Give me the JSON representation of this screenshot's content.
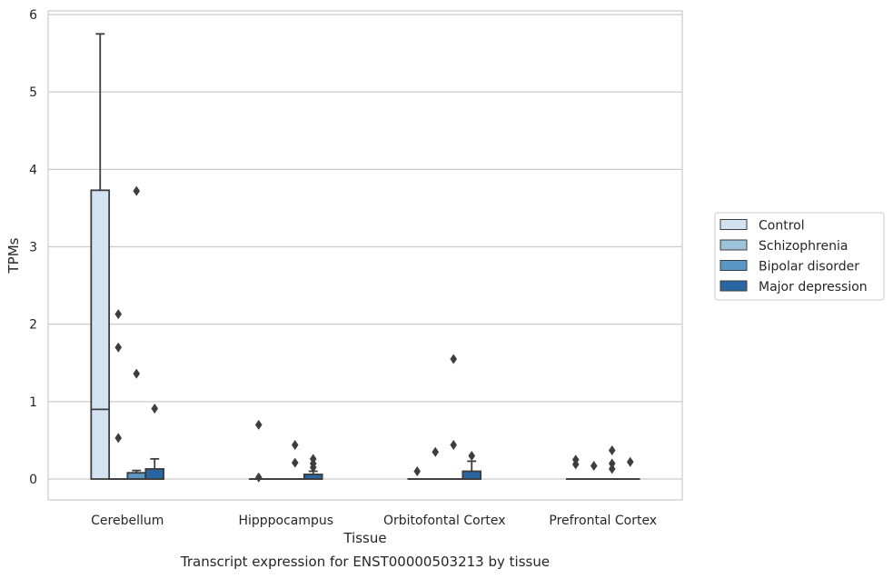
{
  "chart_data": {
    "type": "box",
    "xlabel": "Tissue",
    "ylabel": "TPMs",
    "caption": "Transcript expression for ENST00000503213 by tissue",
    "ylim": [
      -0.27,
      6.05
    ],
    "yticks": [
      0,
      1,
      2,
      3,
      4,
      5,
      6
    ],
    "grid": "horizontal",
    "legend_position": "right",
    "categories": [
      "Cerebellum",
      "Hipppocampus",
      "Orbitofontal Cortex",
      "Prefrontal Cortex"
    ],
    "series": [
      {
        "name": "Control",
        "color": "#d3e3f1",
        "boxes": [
          {
            "q1": 0,
            "median": 0.9,
            "q3": 3.73,
            "whisker_low": 0,
            "whisker_high": 5.75,
            "outliers": []
          },
          {
            "q1": 0,
            "median": 0,
            "q3": 0,
            "whisker_low": 0,
            "whisker_high": 0,
            "outliers": [
              0.7,
              0.02
            ]
          },
          {
            "q1": 0,
            "median": 0,
            "q3": 0,
            "whisker_low": 0,
            "whisker_high": 0,
            "outliers": [
              0.1
            ]
          },
          {
            "q1": 0,
            "median": 0,
            "q3": 0,
            "whisker_low": 0,
            "whisker_high": 0,
            "outliers": [
              0.25,
              0.19
            ]
          }
        ]
      },
      {
        "name": "Schizophrenia",
        "color": "#9cc3da",
        "boxes": [
          {
            "q1": 0,
            "median": 0,
            "q3": 0,
            "whisker_low": 0,
            "whisker_high": 0,
            "outliers": [
              2.13,
              1.7,
              0.53
            ]
          },
          {
            "q1": 0,
            "median": 0,
            "q3": 0,
            "whisker_low": 0,
            "whisker_high": 0,
            "outliers": []
          },
          {
            "q1": 0,
            "median": 0,
            "q3": 0,
            "whisker_low": 0,
            "whisker_high": 0,
            "outliers": [
              0.35
            ]
          },
          {
            "q1": 0,
            "median": 0,
            "q3": 0,
            "whisker_low": 0,
            "whisker_high": 0,
            "outliers": [
              0.17
            ]
          }
        ]
      },
      {
        "name": "Bipolar disorder",
        "color": "#5a96c6",
        "boxes": [
          {
            "q1": 0,
            "median": 0,
            "q3": 0.08,
            "whisker_low": 0,
            "whisker_high": 0.11,
            "outliers": [
              3.72,
              1.36
            ]
          },
          {
            "q1": 0,
            "median": 0,
            "q3": 0,
            "whisker_low": 0,
            "whisker_high": 0,
            "outliers": [
              0.44,
              0.21
            ]
          },
          {
            "q1": 0,
            "median": 0,
            "q3": 0,
            "whisker_low": 0,
            "whisker_high": 0,
            "outliers": [
              1.55,
              0.44
            ]
          },
          {
            "q1": 0,
            "median": 0,
            "q3": 0,
            "whisker_low": 0,
            "whisker_high": 0,
            "outliers": [
              0.37,
              0.2,
              0.13
            ]
          }
        ]
      },
      {
        "name": "Major depression",
        "color": "#2866a3",
        "boxes": [
          {
            "q1": 0,
            "median": 0,
            "q3": 0.13,
            "whisker_low": 0,
            "whisker_high": 0.26,
            "outliers": [
              0.91
            ]
          },
          {
            "q1": 0,
            "median": 0,
            "q3": 0.06,
            "whisker_low": 0,
            "whisker_high": 0.1,
            "outliers": [
              0.26,
              0.2,
              0.15
            ]
          },
          {
            "q1": 0,
            "median": 0,
            "q3": 0.1,
            "whisker_low": 0,
            "whisker_high": 0.23,
            "outliers": [
              0.3
            ]
          },
          {
            "q1": 0,
            "median": 0,
            "q3": 0,
            "whisker_low": 0,
            "whisker_high": 0,
            "outliers": [
              0.22
            ]
          }
        ]
      }
    ]
  }
}
